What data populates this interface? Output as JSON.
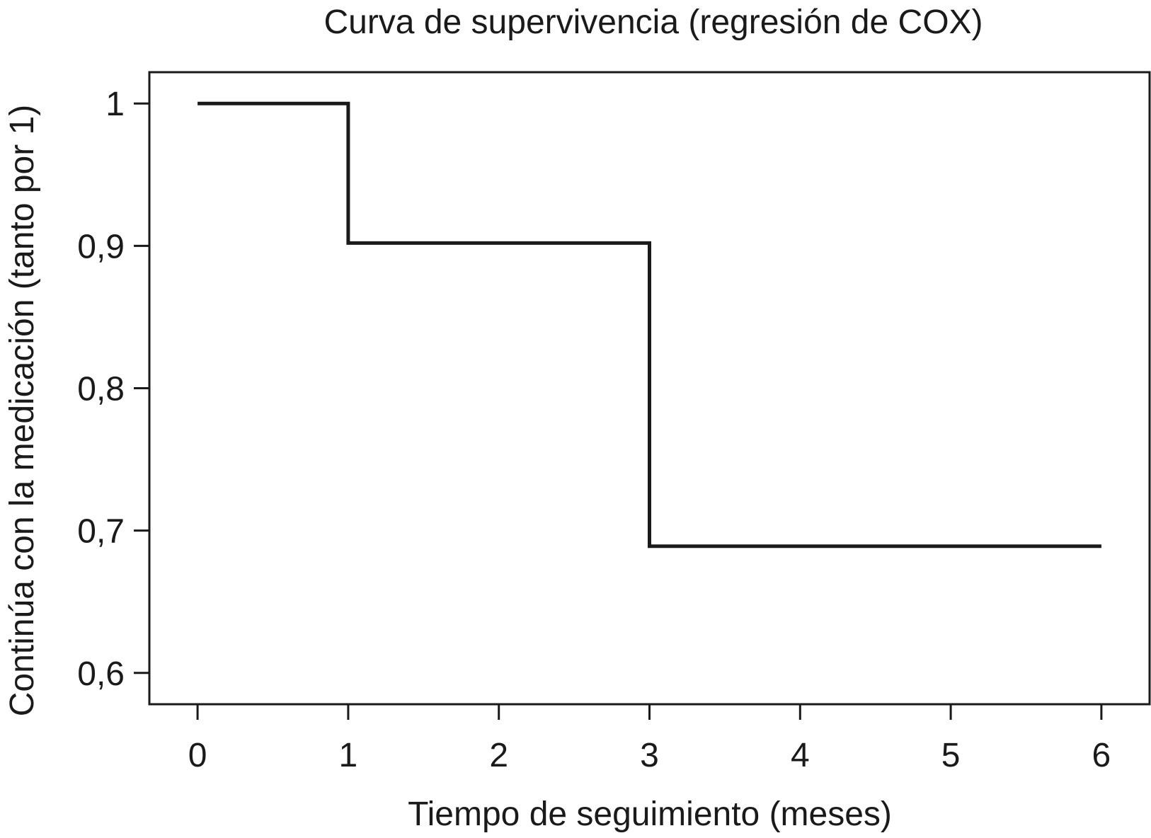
{
  "chart_data": {
    "type": "line",
    "step": true,
    "title": "Curva de supervivencia (regresión de COX)",
    "xlabel": "Tiempo de seguimiento (meses)",
    "ylabel": "Continúa con la medicación (tanto por 1)",
    "xlim": [
      -0.32,
      6.32
    ],
    "ylim": [
      0.578,
      1.022
    ],
    "x_ticks": [
      0,
      1,
      2,
      3,
      4,
      5,
      6
    ],
    "x_tick_labels": [
      "0",
      "1",
      "2",
      "3",
      "4",
      "5",
      "6"
    ],
    "y_ticks": [
      1,
      0.9,
      0.8,
      0.7,
      0.6
    ],
    "y_tick_labels": [
      "1",
      "0,9",
      "0,8",
      "0,7",
      "0,6"
    ],
    "grid": false,
    "legend": "none",
    "series": [
      {
        "x": [
          0,
          1,
          1,
          3,
          3,
          6
        ],
        "y": [
          1,
          1,
          0.902,
          0.902,
          0.689,
          0.689
        ],
        "color": "#1a1a1a"
      }
    ]
  }
}
